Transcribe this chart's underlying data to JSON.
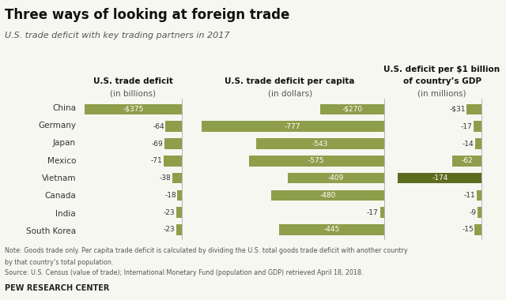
{
  "title": "Three ways of looking at foreign trade",
  "subtitle": "U.S. trade deficit with key trading partners in 2017",
  "countries": [
    "China",
    "Germany",
    "Japan",
    "Mexico",
    "Vietnam",
    "Canada",
    "India",
    "South Korea"
  ],
  "panel1": {
    "header_line1": "U.S. trade deficit",
    "header_line2": "(in billions)",
    "values": [
      -375,
      -64,
      -69,
      -71,
      -38,
      -18,
      -23,
      -23
    ],
    "labels": [
      "-$375",
      "-64",
      "-69",
      "-71",
      "-38",
      "-18",
      "-23",
      "-23"
    ],
    "xlim": [
      -400,
      20
    ]
  },
  "panel2": {
    "header_line1": "U.S. trade deficit per capita",
    "header_line2": "(in dollars)",
    "values": [
      -270,
      -777,
      -543,
      -575,
      -409,
      -480,
      -17,
      -445
    ],
    "labels": [
      "-$270",
      "-777",
      "-543",
      "-575",
      "-409",
      "-480",
      "-17",
      "-445"
    ],
    "xlim": [
      -820,
      20
    ]
  },
  "panel3": {
    "header_line1": "U.S. deficit per $1 billion",
    "header_line2": "of country’s GDP",
    "header_line3": "(in millions)",
    "values": [
      -31,
      -17,
      -14,
      -62,
      -174,
      -11,
      -9,
      -15
    ],
    "labels": [
      "-$31",
      "-17",
      "-14",
      "-62",
      "-174",
      "-11",
      "-9",
      "-15"
    ],
    "xlim": [
      -185,
      20
    ]
  },
  "bar_color_light": "#8f9e4b",
  "bar_color_dark": "#5c6b1e",
  "background_color": "#f7f7f2",
  "note_line1": "Note: Goods trade only. Per capita trade deficit is calculated by dividing the U.S. total goods trade deficit with another country",
  "note_line2": "by that country’s total population.",
  "source_line": "Source: U.S. Census (value of trade); International Monetary Fund (population and GDP) retrieved April 18, 2018.",
  "footer": "PEW RESEARCH CENTER",
  "dark_rows": {
    "panel3": [
      4
    ]
  },
  "label_inside_threshold": {
    "panel1": 0.12,
    "panel2": 0.12,
    "panel3": 0.12
  }
}
